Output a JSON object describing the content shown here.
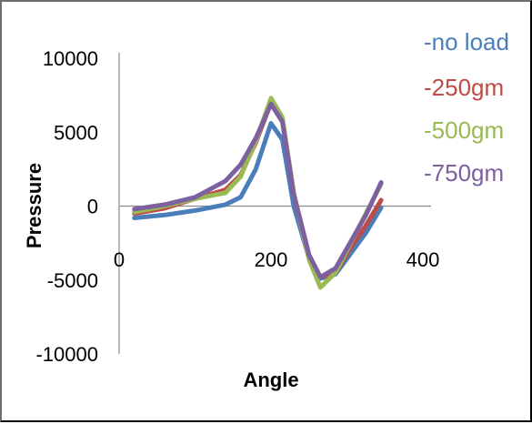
{
  "chart_data": {
    "type": "line",
    "title": "",
    "xlabel": "Angle",
    "ylabel": "Pressure",
    "xlim": [
      0,
      400
    ],
    "ylim": [
      -10000,
      10000
    ],
    "x_ticks": [
      "0",
      "200",
      "400"
    ],
    "y_ticks": [
      "10000",
      "5000",
      "0",
      "-5000",
      "-10000"
    ],
    "grid": false,
    "legend_position": "right",
    "series": [
      {
        "name": "-no load",
        "color": "#4a7ebb",
        "x": [
          20,
          60,
          100,
          140,
          160,
          180,
          200,
          215,
          230,
          250,
          265,
          285,
          305,
          325,
          345
        ],
        "y": [
          -800,
          -600,
          -300,
          100,
          600,
          2500,
          5600,
          4500,
          0,
          -3500,
          -4900,
          -4600,
          -3200,
          -1800,
          -100
        ]
      },
      {
        "name": "-250gm",
        "color": "#be4b48",
        "x": [
          20,
          60,
          100,
          140,
          160,
          180,
          200,
          215,
          230,
          250,
          265,
          285,
          305,
          325,
          345
        ],
        "y": [
          -500,
          -150,
          500,
          1100,
          2100,
          4300,
          7000,
          5800,
          800,
          -3300,
          -4800,
          -4500,
          -2800,
          -1300,
          400
        ]
      },
      {
        "name": "-500gm",
        "color": "#98b954",
        "x": [
          20,
          60,
          100,
          140,
          160,
          180,
          200,
          215,
          230,
          250,
          265,
          285,
          305,
          325,
          345
        ],
        "y": [
          -400,
          0,
          500,
          900,
          2000,
          4400,
          7300,
          6000,
          900,
          -3600,
          -5500,
          -4500,
          -2500,
          -500,
          1500
        ]
      },
      {
        "name": "-750gm",
        "color": "#7d60a0",
        "x": [
          20,
          60,
          100,
          140,
          160,
          180,
          200,
          215,
          230,
          250,
          265,
          285,
          305,
          325,
          345
        ],
        "y": [
          -200,
          100,
          600,
          1700,
          2800,
          4600,
          6900,
          5700,
          800,
          -3300,
          -4800,
          -4200,
          -2400,
          -600,
          1600
        ]
      }
    ]
  }
}
